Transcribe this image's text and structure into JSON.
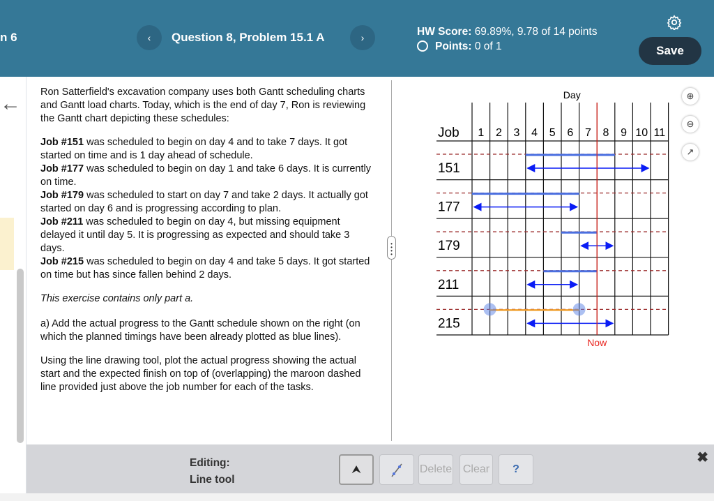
{
  "header": {
    "left_fragment": "n 6",
    "prev_label": "‹",
    "next_label": "›",
    "question_title": "Question 8, Problem 15.1 A",
    "hw_score_label": "HW Score:",
    "hw_score_value": "69.89%, 9.78 of 14 points",
    "points_label": "Points:",
    "points_value": "0 of 1",
    "save_label": "Save",
    "icons": [
      "gear-icon",
      "circle-status-icon"
    ]
  },
  "problem": {
    "intro": "Ron Satterfield's excavation company uses both Gantt scheduling charts and Gantt load charts. Today, which is the end of day 7, Ron is reviewing the Gantt chart depicting these schedules:",
    "jobs": [
      {
        "label": "Job #151",
        "text": " was scheduled to begin on day 4 and to take 7 days. It got started on time and is 1 day ahead of schedule."
      },
      {
        "label": "Job #177",
        "text": " was scheduled to begin on day 1 and take 6 days. It is currently on time."
      },
      {
        "label": "Job #179",
        "text": " was scheduled to start on day 7 and take 2 days. It actually got started on day 6 and is progressing according to plan."
      },
      {
        "label": "Job #211",
        "text": " was scheduled to begin on day 4, but missing equipment delayed it until day 5. It is progressing as expected and should take 3 days."
      },
      {
        "label": "Job #215",
        "text": " was scheduled to begin on day 4 and take 5 days. It got started on time but has since fallen behind 2 days."
      }
    ],
    "note": "This exercise contains only part a.",
    "part_a": "a) Add the actual progress to the Gantt schedule shown on the right (on which the planned timings have been already plotted as blue lines).",
    "instructions": "Using the line drawing tool, plot the actual progress showing the actual start and the expected finish on top of (overlapping) the maroon dashed line provided just above the job number for each of the tasks."
  },
  "chart_data": {
    "type": "gantt",
    "title": "Day",
    "job_header": "Job",
    "days": [
      "1",
      "2",
      "3",
      "4",
      "5",
      "6",
      "7",
      "8",
      "9",
      "10",
      "11"
    ],
    "now_label": "Now",
    "now_day_end": 7,
    "jobs": [
      {
        "job": "151",
        "planned_start_day": 4,
        "planned_duration": 7,
        "actual_line_from_day": 4,
        "actual_line_to_day": 8,
        "actual_color": "#4a6fe0"
      },
      {
        "job": "177",
        "planned_start_day": 1,
        "planned_duration": 6,
        "actual_line_from_day": 1,
        "actual_line_to_day": 6,
        "actual_color": "#4a6fe0"
      },
      {
        "job": "179",
        "planned_start_day": 7,
        "planned_duration": 2,
        "actual_line_from_day": 6,
        "actual_line_to_day": 7,
        "actual_color": "#4a6fe0"
      },
      {
        "job": "211",
        "planned_start_day": 4,
        "planned_duration": 3,
        "actual_line_from_day": 5,
        "actual_line_to_day": 7,
        "actual_color": "#4a6fe0"
      },
      {
        "job": "215",
        "planned_start_day": 4,
        "planned_duration": 5,
        "actual_line_from_day": 2,
        "actual_line_to_day": 6,
        "actual_color": "#f0a030",
        "being_drawn": true
      }
    ],
    "colors": {
      "planned": "#0a1cf5",
      "dashed": "#9b2b2b",
      "now": "#e8221c",
      "grid": "#111111"
    }
  },
  "side_icons": [
    "zoom-in-icon",
    "zoom-out-icon",
    "external-link-icon"
  ],
  "toolbar": {
    "editing_label": "Editing:",
    "tool_name": "Line tool",
    "delete_label": "Delete",
    "clear_label": "Clear",
    "help_label": "?",
    "close_label": "✖"
  },
  "colors": {
    "header_bg": "#357897",
    "save_bg": "#223544",
    "toolbar_bg": "#d4d5d9"
  }
}
